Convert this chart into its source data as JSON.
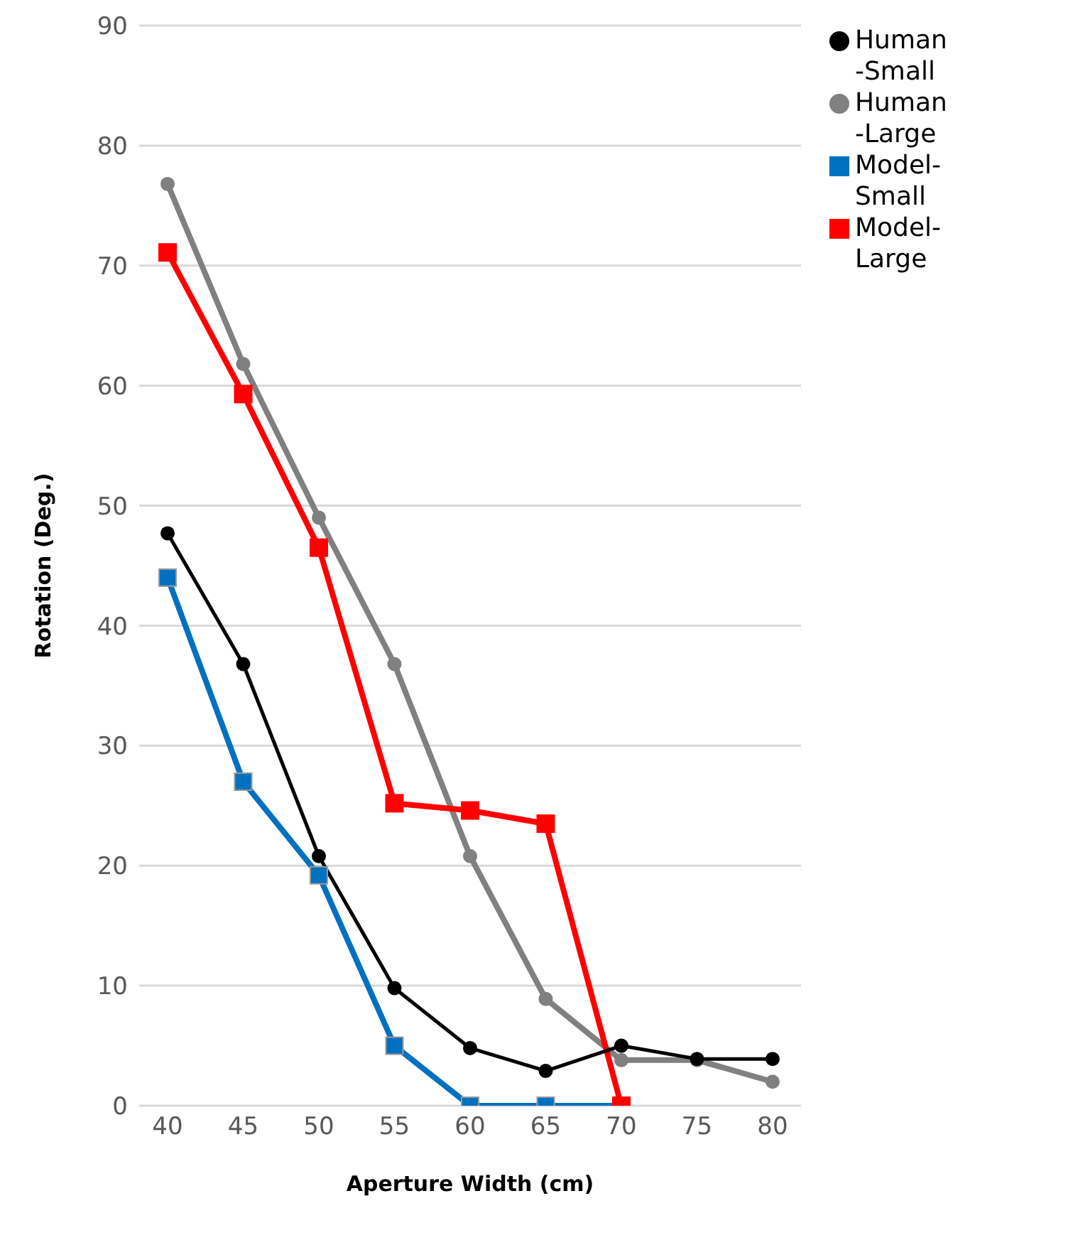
{
  "chart_data": {
    "type": "line",
    "xlabel": "Aperture Width (cm)",
    "ylabel": "Rotation  (Deg.)",
    "categories": [
      "40",
      "45",
      "50",
      "55",
      "60",
      "65",
      "70",
      "75",
      "80"
    ],
    "series": [
      {
        "name": "Human-Small",
        "color": "#000000",
        "marker": "circle",
        "values": [
          47.7,
          36.8,
          20.8,
          9.8,
          4.8,
          2.9,
          5,
          3.9,
          3.9
        ]
      },
      {
        "name": "Human-Large",
        "color": "#808080",
        "marker": "circle",
        "values": [
          76.8,
          61.8,
          49,
          36.8,
          20.8,
          8.9,
          3.8,
          3.8,
          2
        ]
      },
      {
        "name": "Model-Small",
        "color": "#0070c0",
        "marker": "square",
        "values": [
          44,
          27,
          19.2,
          5,
          0,
          0,
          0,
          null,
          null
        ]
      },
      {
        "name": "Model-Large",
        "color": "#ff0000",
        "marker": "square",
        "values": [
          71.1,
          59.3,
          46.5,
          25.2,
          24.6,
          23.5,
          0,
          null,
          null
        ]
      }
    ],
    "ylim": [
      0,
      90
    ],
    "yticks": [
      0,
      10,
      20,
      30,
      40,
      50,
      60,
      70,
      80,
      90
    ],
    "grid": "y",
    "legend": "top right"
  }
}
